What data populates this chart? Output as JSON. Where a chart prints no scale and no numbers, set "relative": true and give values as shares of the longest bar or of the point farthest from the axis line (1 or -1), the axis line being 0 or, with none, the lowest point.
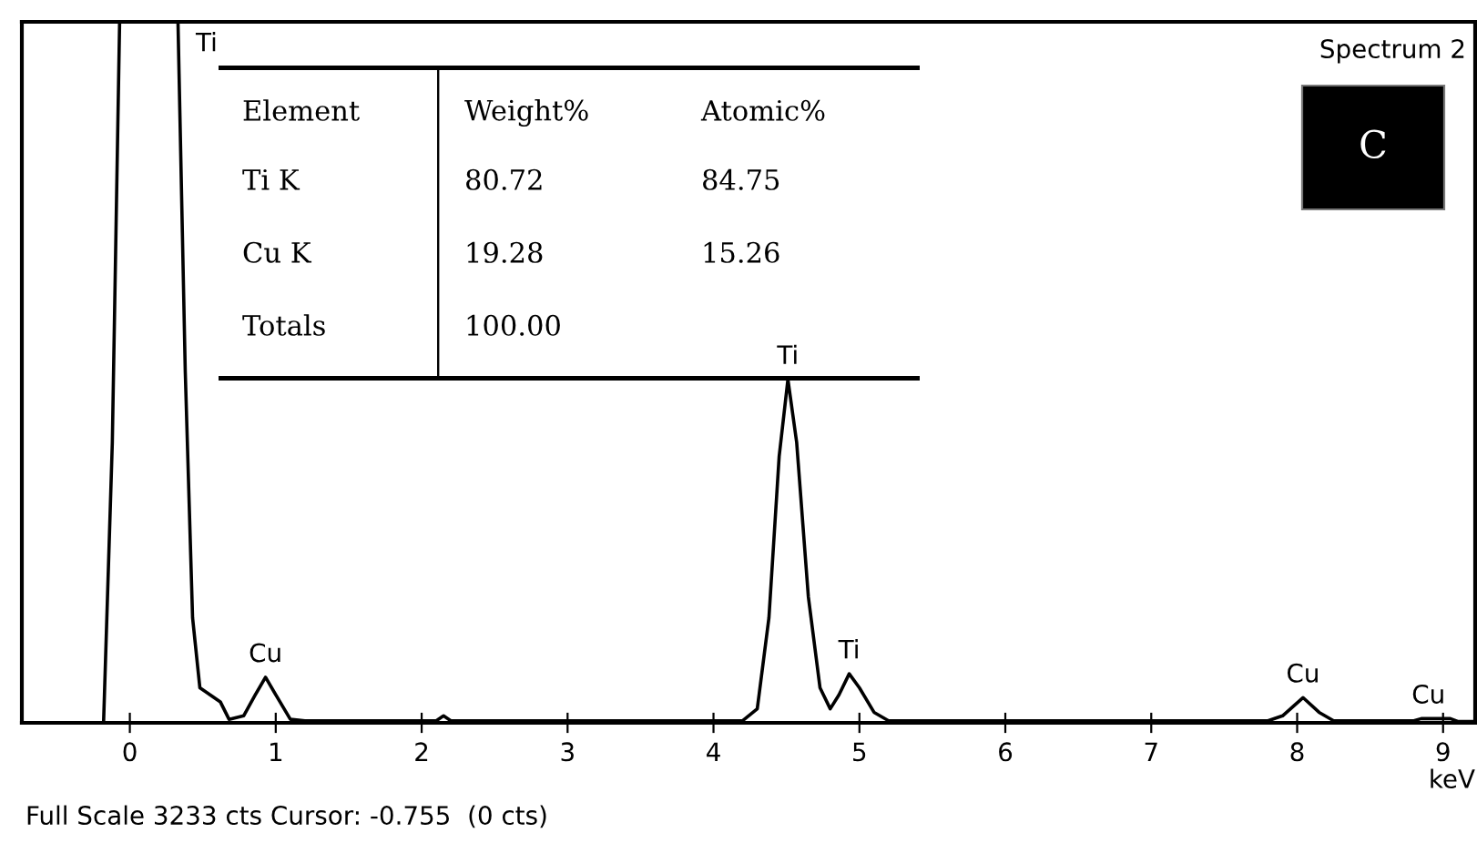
{
  "chart_data": {
    "type": "line",
    "relative": true,
    "xlabel": "keV",
    "title": "Spectrum 2",
    "x": [
      -0.74,
      -0.18,
      -0.12,
      -0.07,
      0.33,
      0.38,
      0.43,
      0.48,
      0.55,
      0.62,
      0.68,
      0.78,
      0.86,
      0.93,
      1.0,
      1.1,
      1.2,
      2.1,
      2.15,
      2.2,
      4.2,
      4.3,
      4.38,
      4.45,
      4.51,
      4.57,
      4.65,
      4.73,
      4.8,
      4.86,
      4.93,
      5.0,
      5.1,
      5.2,
      7.8,
      7.9,
      8.04,
      8.15,
      8.25,
      8.8,
      8.85,
      9.05,
      9.1,
      9.22
    ],
    "series": [
      {
        "color": "#000000",
        "values": [
          0,
          0,
          0.4,
          1.0,
          1.0,
          0.5,
          0.15,
          0.05,
          0.04,
          0.03,
          0.005,
          0.01,
          0.04,
          0.065,
          0.04,
          0.005,
          0.003,
          0.003,
          0.01,
          0.003,
          0.003,
          0.02,
          0.15,
          0.38,
          0.49,
          0.4,
          0.18,
          0.05,
          0.02,
          0.04,
          0.07,
          0.05,
          0.015,
          0.003,
          0.003,
          0.01,
          0.036,
          0.015,
          0.003,
          0.003,
          0.006,
          0.006,
          0.002,
          0.002
        ]
      }
    ],
    "xlim": [
      -0.74,
      9.22
    ],
    "xticks": [
      0,
      1,
      2,
      3,
      4,
      5,
      6,
      7,
      8,
      9
    ],
    "grid": false,
    "legend": false,
    "annotations": [
      "C",
      "Full Scale 3233 cts Cursor: -0.755  (0 cts)",
      "Element",
      "Weight%",
      "Atomic%",
      "Ti K",
      "80.72",
      "84.75",
      "Cu K",
      "19.28",
      "15.26",
      "Totals",
      "100.00",
      {
        "text": "Ti",
        "x": 0.4,
        "y": 1.0
      },
      {
        "text": "Cu",
        "x": 0.93,
        "y": 0.065
      },
      {
        "text": "Ti",
        "x": 4.51,
        "y": 0.49
      },
      {
        "text": "Ti",
        "x": 4.93,
        "y": 0.07
      },
      {
        "text": "Cu",
        "x": 8.04,
        "y": 0.036
      },
      {
        "text": "Cu",
        "x": 8.9,
        "y": 0.006
      }
    ]
  }
}
